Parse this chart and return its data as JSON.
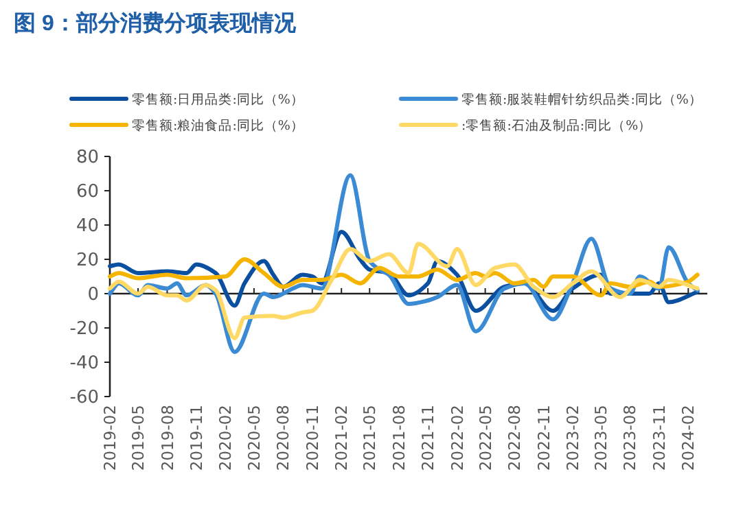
{
  "chart_data": {
    "type": "line",
    "title": "图 9：部分消费分项表现情况",
    "legend": "top",
    "xlim": [
      "2019-02",
      "2024-04"
    ],
    "xticks": [
      "2019-02",
      "2019-05",
      "2019-08",
      "2019-11",
      "2020-02",
      "2020-05",
      "2020-08",
      "2020-11",
      "2021-02",
      "2021-05",
      "2021-08",
      "2021-11",
      "2022-02",
      "2022-05",
      "2022-08",
      "2022-11",
      "2023-02",
      "2023-05",
      "2023-08",
      "2023-11",
      "2024-02"
    ],
    "ylim": [
      -60,
      80
    ],
    "yticks": [
      -60,
      -40,
      -20,
      0,
      20,
      40,
      60,
      80
    ],
    "series": [
      {
        "name": "零售额:日用品类:同比（%）",
        "color": "#0b4fa0",
        "x": [
          "2019-02",
          "2019-03",
          "2019-05",
          "2019-08",
          "2019-10",
          "2019-11",
          "2020-01",
          "2020-03",
          "2020-04",
          "2020-06",
          "2020-07",
          "2020-08",
          "2020-10",
          "2020-11",
          "2020-12",
          "2021-02",
          "2021-04",
          "2021-05",
          "2021-07",
          "2021-09",
          "2021-11",
          "2021-12",
          "2022-02",
          "2022-04",
          "2022-07",
          "2022-09",
          "2022-12",
          "2023-02",
          "2023-05",
          "2023-06",
          "2023-10",
          "2023-11",
          "2023-12",
          "2024-03"
        ],
        "values": [
          16,
          17,
          12,
          13,
          12,
          17,
          12,
          -7,
          6,
          19,
          11,
          4,
          11,
          10,
          6,
          36,
          20,
          14,
          12,
          -1,
          6,
          19,
          11,
          -10,
          4,
          6,
          -10,
          3,
          11,
          0,
          0,
          6,
          -5,
          1
        ]
      },
      {
        "name": "零售额:服装鞋帽针纺织品类:同比（%）",
        "color": "#3b8ad4",
        "x": [
          "2019-02",
          "2019-03",
          "2019-05",
          "2019-06",
          "2019-08",
          "2019-09",
          "2019-10",
          "2019-12",
          "2020-01",
          "2020-03",
          "2020-06",
          "2020-07",
          "2020-09",
          "2020-10",
          "2020-12",
          "2021-03",
          "2021-05",
          "2021-06",
          "2021-07",
          "2021-09",
          "2021-11",
          "2021-12",
          "2022-02",
          "2022-04",
          "2022-07",
          "2022-09",
          "2022-12",
          "2023-02",
          "2023-04",
          "2023-06",
          "2023-08",
          "2023-09",
          "2023-11",
          "2023-12",
          "2024-02",
          "2024-03"
        ],
        "values": [
          0,
          6,
          -1,
          5,
          3,
          6,
          -1,
          5,
          0,
          -34,
          0,
          -2,
          3,
          5,
          3,
          69,
          19,
          14,
          11,
          -6,
          -4,
          -2,
          5,
          -22,
          3,
          6,
          -15,
          6,
          32,
          3,
          0,
          10,
          3,
          27,
          6,
          2
        ]
      },
      {
        "name": "零售额:粮油食品:同比（%）",
        "color": "#f5b400",
        "x": [
          "2019-02",
          "2019-03",
          "2019-05",
          "2019-08",
          "2019-10",
          "2020-02",
          "2020-04",
          "2020-06",
          "2020-08",
          "2020-10",
          "2020-12",
          "2021-02",
          "2021-04",
          "2021-06",
          "2021-08",
          "2021-10",
          "2021-12",
          "2022-02",
          "2022-04",
          "2022-05",
          "2022-06",
          "2022-08",
          "2022-10",
          "2022-11",
          "2022-12",
          "2023-02",
          "2023-05",
          "2023-06",
          "2023-08",
          "2023-10",
          "2023-11",
          "2024-02",
          "2024-03"
        ],
        "values": [
          10,
          12,
          9,
          11,
          9,
          10,
          20,
          12,
          4,
          8,
          8,
          11,
          6,
          15,
          10,
          10,
          14,
          8,
          12,
          10,
          12,
          6,
          8,
          4,
          10,
          10,
          -1,
          6,
          4,
          7,
          4,
          7,
          11
        ]
      },
      {
        "name": ":零售额:石油及制品:同比（%）",
        "color": "#ffd966",
        "x": [
          "2019-02",
          "2019-03",
          "2019-05",
          "2019-06",
          "2019-08",
          "2019-09",
          "2019-10",
          "2019-12",
          "2020-01",
          "2020-03",
          "2020-04",
          "2020-07",
          "2020-08",
          "2020-10",
          "2020-11",
          "2021-01",
          "2021-03",
          "2021-05",
          "2021-07",
          "2021-09",
          "2021-10",
          "2022-01",
          "2022-02",
          "2022-04",
          "2022-06",
          "2022-08",
          "2022-10",
          "2022-12",
          "2023-02",
          "2023-04",
          "2023-07",
          "2023-09",
          "2023-11",
          "2023-12",
          "2024-03"
        ],
        "values": [
          3,
          7,
          0,
          4,
          -1,
          -1,
          -4,
          5,
          2,
          -26,
          -14,
          -13,
          -14,
          -11,
          -10,
          8,
          26,
          19,
          23,
          12,
          29,
          16,
          26,
          5,
          15,
          17,
          4,
          -2,
          6,
          13,
          -2,
          8,
          4,
          8,
          3
        ]
      }
    ]
  }
}
